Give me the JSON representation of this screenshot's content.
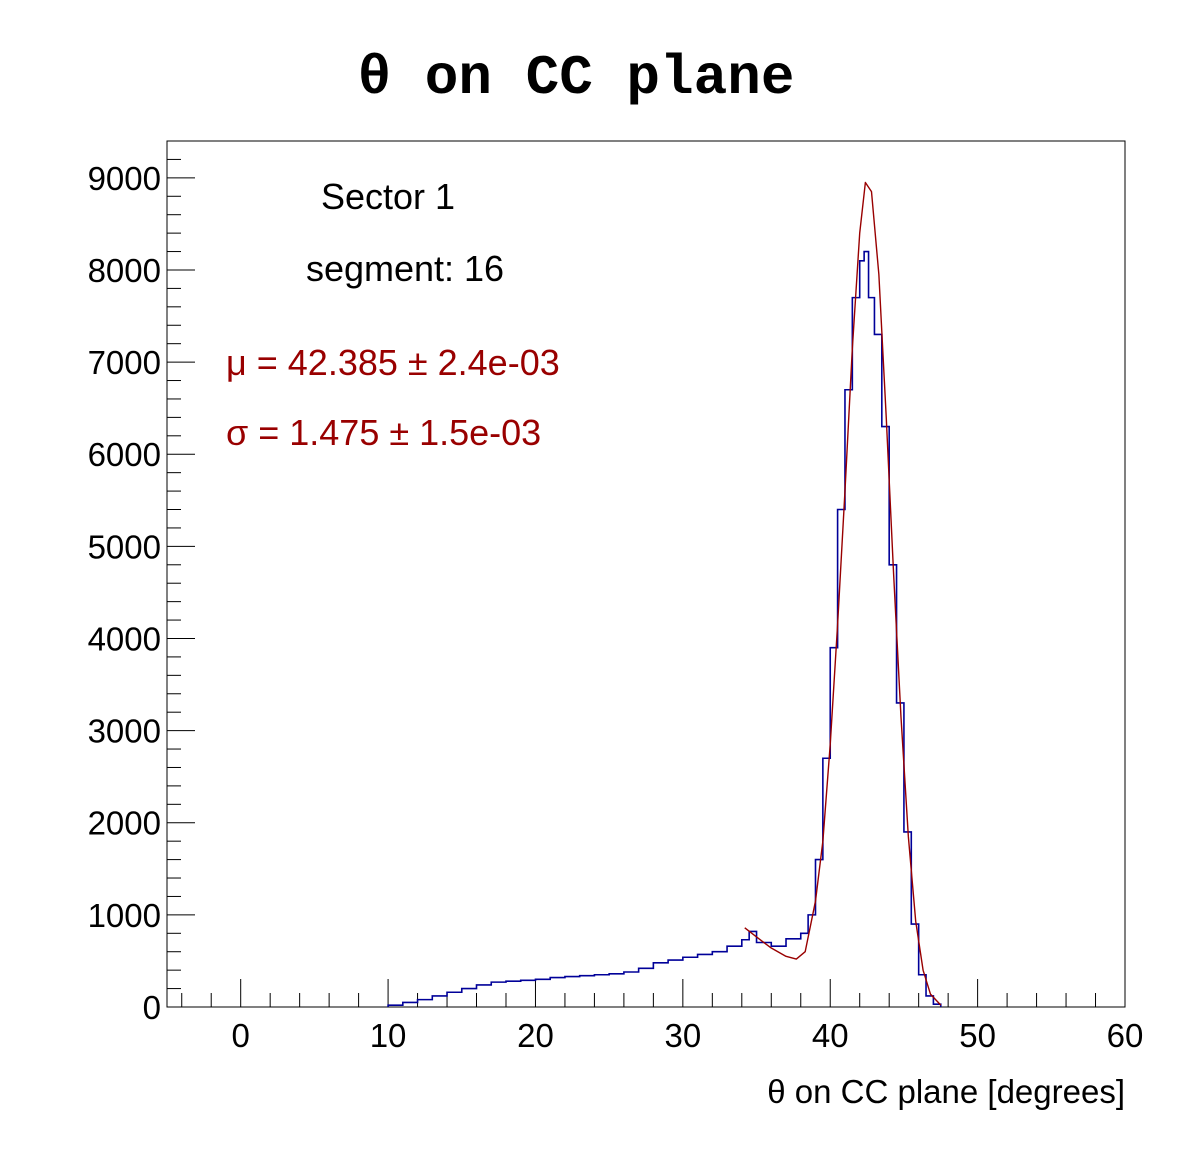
{
  "chart_data": {
    "type": "line",
    "title": "θ on CC plane",
    "xlabel": "θ on CC plane    [degrees]",
    "ylabel": "",
    "xlim": [
      -5,
      60
    ],
    "ylim": [
      0,
      9400
    ],
    "x_ticks": [
      0,
      10,
      20,
      30,
      40,
      50,
      60
    ],
    "y_ticks": [
      0,
      1000,
      2000,
      3000,
      4000,
      5000,
      6000,
      7000,
      8000,
      9000
    ],
    "grid": false,
    "annotations": {
      "sector": "Sector 1",
      "segment": "segment: 16",
      "mu": "μ = 42.385 ± 2.4e-03",
      "sigma": "σ = 1.475 ± 1.5e-03"
    },
    "colors": {
      "histogram": "#000099",
      "fit": "#990000",
      "fit_text": "#990000"
    },
    "series": [
      {
        "type": "histogram",
        "x": [
          10,
          11,
          12,
          13,
          14,
          15,
          16,
          17,
          18,
          19,
          20,
          21,
          22,
          23,
          24,
          25,
          26,
          27,
          28,
          29,
          30,
          31,
          32,
          33,
          34,
          34.5,
          35,
          36,
          37,
          38,
          38.5,
          39,
          39.5,
          40,
          40.5,
          41,
          41.5,
          42,
          42.3,
          42.6,
          43,
          43.5,
          44,
          44.5,
          45,
          45.5,
          46,
          46.5,
          47,
          47.5
        ],
        "y": [
          20,
          50,
          80,
          120,
          160,
          200,
          240,
          270,
          280,
          290,
          300,
          320,
          330,
          340,
          350,
          360,
          380,
          420,
          480,
          510,
          540,
          570,
          600,
          660,
          730,
          820,
          700,
          660,
          740,
          800,
          1000,
          1600,
          2700,
          3900,
          5400,
          6700,
          7700,
          8100,
          8200,
          7700,
          7300,
          6300,
          4800,
          3300,
          1900,
          900,
          350,
          120,
          30,
          0
        ]
      },
      {
        "type": "fit",
        "x": [
          34.2,
          35,
          36,
          37,
          37.7,
          38.3,
          39,
          39.5,
          40,
          40.5,
          41,
          41.5,
          42,
          42.385,
          42.8,
          43.3,
          43.8,
          44.3,
          44.8,
          45.3,
          45.8,
          46.3,
          46.8,
          47.5
        ],
        "y": [
          860,
          760,
          640,
          550,
          520,
          600,
          1150,
          1800,
          2850,
          4150,
          5600,
          7150,
          8400,
          8950,
          8850,
          7950,
          6400,
          4700,
          3150,
          1850,
          930,
          400,
          140,
          20
        ]
      }
    ]
  }
}
